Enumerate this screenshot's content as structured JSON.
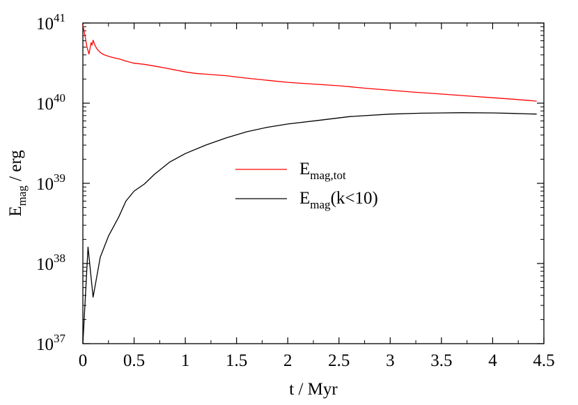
{
  "chart_data": {
    "type": "line",
    "xlabel": "t / Myr",
    "ylabel": {
      "base": "E",
      "sub": "mag",
      "rest": " / erg"
    },
    "x_range": [
      0,
      4.5
    ],
    "y_range": [
      1e+37,
      1e+41
    ],
    "y_scale": "log",
    "x_ticks": [
      "0",
      "0.5",
      "1",
      "1.5",
      "2",
      "2.5",
      "3",
      "3.5",
      "4",
      "4.5"
    ],
    "x_tick_values": [
      0,
      0.5,
      1,
      1.5,
      2,
      2.5,
      3,
      3.5,
      4,
      4.5
    ],
    "y_ticks": [
      {
        "value": 1e+37,
        "base": "10",
        "exp": "37"
      },
      {
        "value": 1e+38,
        "base": "10",
        "exp": "38"
      },
      {
        "value": 1e+39,
        "base": "10",
        "exp": "39"
      },
      {
        "value": 1e+40,
        "base": "10",
        "exp": "40"
      },
      {
        "value": 1e+41,
        "base": "10",
        "exp": "41"
      }
    ],
    "grid": false,
    "legend_position": "center",
    "series": [
      {
        "name": {
          "base": "E",
          "sub": "mag,tot",
          "rest": ""
        },
        "color": "#ff0000",
        "x": [
          0,
          0.02,
          0.04,
          0.06,
          0.08,
          0.09,
          0.1,
          0.11,
          0.12,
          0.14,
          0.17,
          0.2,
          0.25,
          0.3,
          0.36,
          0.42,
          0.5,
          0.6,
          0.7,
          0.8,
          0.9,
          1.0,
          1.1,
          1.2,
          1.4,
          1.5,
          1.6,
          1.8,
          2.0,
          2.2,
          2.5,
          2.8,
          3.0,
          3.2,
          3.5,
          3.8,
          4.0,
          4.2,
          4.43
        ],
        "y": [
          9.5e+40,
          7e+40,
          5e+40,
          4.1e+40,
          5.7e+40,
          5.3e+40,
          6.1e+40,
          5.6e+40,
          5.2e+40,
          4.7e+40,
          4.3e+40,
          4.05e+40,
          3.85e+40,
          3.7e+40,
          3.55e+40,
          3.35e+40,
          3.15e+40,
          3.05e+40,
          2.9e+40,
          2.75e+40,
          2.6e+40,
          2.45e+40,
          2.35e+40,
          2.3e+40,
          2.2e+40,
          2.12e+40,
          2.05e+40,
          1.93e+40,
          1.82e+40,
          1.75e+40,
          1.65e+40,
          1.52e+40,
          1.45e+40,
          1.38e+40,
          1.3e+40,
          1.22e+40,
          1.17e+40,
          1.12e+40,
          1.06e+40
        ]
      },
      {
        "name": {
          "base": "E",
          "sub": "mag",
          "rest": "(k<10)"
        },
        "color": "#000000",
        "x": [
          0,
          0.05,
          0.1,
          0.17,
          0.25,
          0.35,
          0.42,
          0.5,
          0.6,
          0.7,
          0.85,
          1.0,
          1.2,
          1.4,
          1.6,
          1.8,
          2.0,
          2.3,
          2.6,
          3.0,
          3.3,
          3.7,
          4.0,
          4.2,
          4.43
        ],
        "y": [
          1e+37,
          1.6e+38,
          3.8e+37,
          1.2e+38,
          2.2e+38,
          3.8e+38,
          6e+38,
          8e+38,
          9.8e+38,
          1.3e+39,
          1.85e+39,
          2.35e+39,
          3e+39,
          3.7e+39,
          4.4e+39,
          5e+39,
          5.5e+39,
          6.1e+39,
          6.8e+39,
          7.3e+39,
          7.5e+39,
          7.6e+39,
          7.55e+39,
          7.45e+39,
          7.3e+39
        ]
      }
    ]
  }
}
